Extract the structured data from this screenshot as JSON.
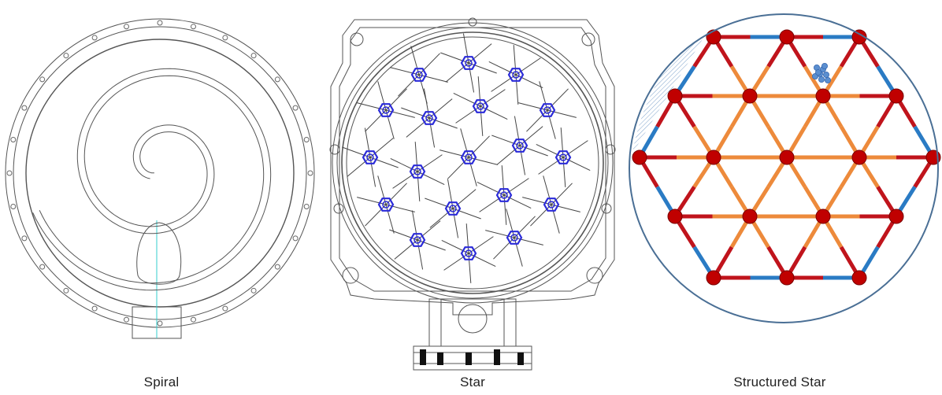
{
  "panels": [
    {
      "id": "spiral",
      "caption": "Spiral"
    },
    {
      "id": "star",
      "caption": "Star"
    },
    {
      "id": "structured_star",
      "caption": "Structured Star"
    }
  ],
  "colors": {
    "line_drawing": "#555555",
    "star_hub": "#2b2bd9",
    "node_red": "#c00000",
    "beam_red": "#c0141c",
    "beam_blue": "#2a7bc4",
    "beam_orange": "#ed8a3b",
    "circle_outline": "#4a6f95",
    "particles": "#5b8fd0"
  }
}
